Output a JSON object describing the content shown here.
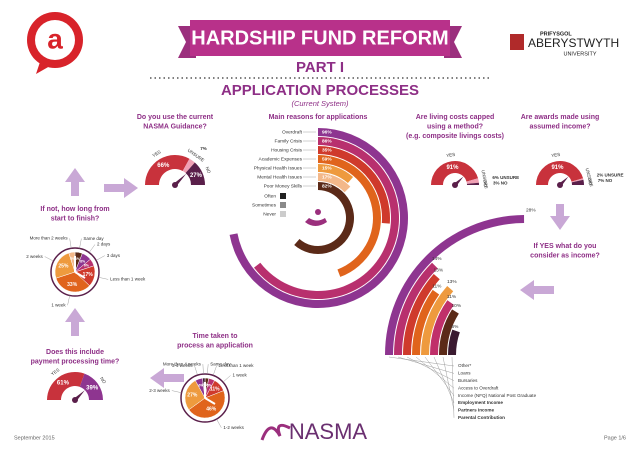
{
  "header": {
    "title": "HARDSHIP FUND REFORM",
    "part": "PART I",
    "section": "APPLICATION PROCESSES",
    "subtitle": "(Current System)"
  },
  "logos": {
    "union_mark": "a",
    "university": [
      "PRIFYSGOL",
      "ABERYSTWYTH",
      "UNIVERSITY"
    ]
  },
  "nasma_guidance": {
    "question": [
      "Do you use the current",
      "NASMA Guidance?"
    ],
    "categories": [
      "YES",
      "UNSURE",
      "NO"
    ],
    "values": [
      66,
      7,
      27
    ],
    "value_labels": [
      "66%",
      "7%",
      "27%"
    ],
    "colors": [
      "#c8323c",
      "#f0a0b4",
      "#5a1f4a"
    ]
  },
  "main_reasons": {
    "title": "Main reasons for applications",
    "categories": [
      "Overdraft",
      "Family Crisis",
      "Housing Crisis",
      "Academic Expenses",
      "Physical Health Issues",
      "Mental Health Issues",
      "Poor Money Skills"
    ],
    "values": [
      96,
      86,
      35,
      59,
      15,
      17,
      82
    ],
    "value_labels": [
      "96%",
      "86%",
      "35%",
      "59%",
      "15%",
      "17%",
      "82%"
    ],
    "colors": [
      "#8e3590",
      "#b8306e",
      "#cf3a2c",
      "#e0641c",
      "#ee9a3e",
      "#f3b88a",
      "#5b2a18"
    ],
    "legend": [
      "Often",
      "Sometimes",
      "Never"
    ],
    "legend_colors": [
      "#222222",
      "#8a8a8a",
      "#cccccc"
    ]
  },
  "living_costs": {
    "question": [
      "Are living costs capped",
      "using a method?",
      "(e.g. composite livings costs)"
    ],
    "categories": [
      "YES",
      "UNSURE",
      "NO"
    ],
    "values": [
      91,
      6,
      3
    ],
    "value_labels": [
      "91%",
      "6% UNSURE",
      "3% NO"
    ],
    "colors": [
      "#c8323c",
      "#f0a0b4",
      "#5a1f4a"
    ]
  },
  "assumed_income": {
    "question": [
      "Are awards made using",
      "assumed income?"
    ],
    "categories": [
      "YES",
      "UNSURE",
      "NO"
    ],
    "values": [
      91,
      2,
      7
    ],
    "value_labels": [
      "91%",
      "2% UNSURE",
      "7% NO"
    ],
    "colors": [
      "#c8323c",
      "#f0a0b4",
      "#5a1f4a"
    ]
  },
  "income": {
    "question": [
      "If YES what do you",
      "consider as income?"
    ],
    "categories": [
      "Other*",
      "Loans",
      "Bursaries",
      "Access to Overdraft",
      "Income (NFQ) National Post Graduate",
      "Employment Income",
      "Partners Income",
      "Parental Contribution"
    ],
    "values": [
      28,
      14,
      13,
      11,
      13,
      11,
      10,
      6
    ],
    "value_labels": [
      "28%",
      "14%",
      "13%",
      "11%",
      "13%",
      "11%",
      "10%",
      "6%"
    ],
    "colors": [
      "#8e3590",
      "#b8306e",
      "#cf3a2c",
      "#e0641c",
      "#ee9a3e",
      "#c0306a",
      "#5b2a18",
      "#3a1a30"
    ]
  },
  "start_to_finish": {
    "question": [
      "If not, how long from",
      "start to finish?"
    ],
    "categories": [
      "Same day",
      "2 days",
      "3 days",
      "Less than 1 week",
      "1 week",
      "2 weeks",
      "More than 2 weeks"
    ],
    "values": [
      6,
      8,
      6,
      17,
      33,
      25,
      5
    ],
    "value_labels": [
      "6%",
      "8%",
      "6%",
      "17%",
      "33%",
      "25%",
      "5%"
    ],
    "colors": [
      "#5b2a18",
      "#8e3590",
      "#b8306e",
      "#cf3a2c",
      "#e0641c",
      "#ee9a3e",
      "#f3b88a"
    ]
  },
  "payment_processing": {
    "question": [
      "Does this include",
      "payment processing time?"
    ],
    "categories": [
      "YES",
      "NO"
    ],
    "values": [
      61,
      39
    ],
    "value_labels": [
      "61%",
      "39%"
    ],
    "colors": [
      "#c8323c",
      "#8e3590"
    ]
  },
  "time_taken": {
    "question": [
      "Time taken to",
      "process an application"
    ],
    "categories": [
      "Same day",
      "Less than 1 week",
      "1 week",
      "1-2 weeks",
      "2-3 weeks",
      "3-4 weeks",
      "More than 4 weeks"
    ],
    "values": [
      3,
      5,
      11,
      46,
      27,
      6,
      2
    ],
    "value_labels": [
      "3%",
      "5%",
      "11%",
      "46%",
      "27%",
      "6%",
      "2%"
    ],
    "colors": [
      "#5b2a18",
      "#b8306e",
      "#cf3a2c",
      "#e0641c",
      "#ee9a3e",
      "#8e3590",
      "#3a1a30"
    ]
  },
  "footer": {
    "date": "September 2015",
    "brand": "NASMA",
    "page": "Page 1/6"
  }
}
